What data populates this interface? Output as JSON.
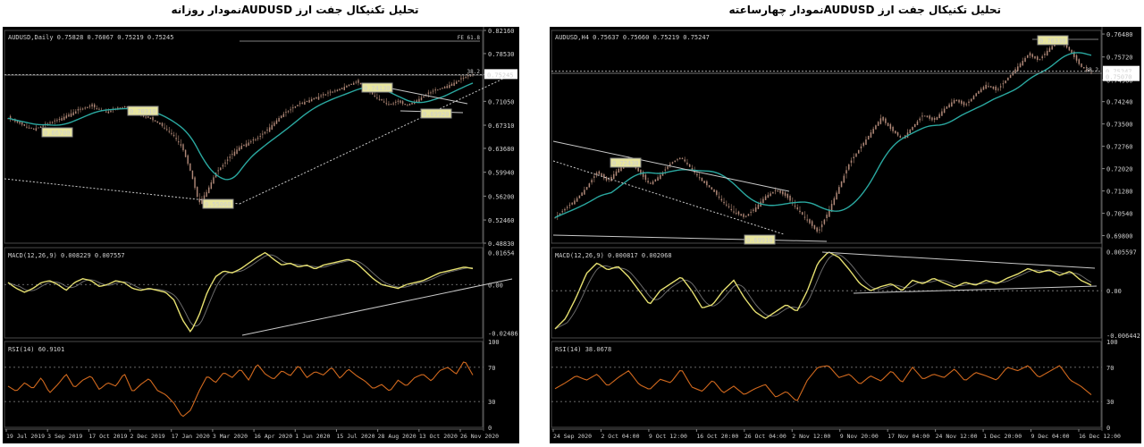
{
  "headers": {
    "left": "تحلیل تکنیکال جفت ارز AUDUSDنمودار روزانه",
    "right": "تحلیل تکنیکال جفت ارز AUDUSDنمودار چهارساعته"
  },
  "chart_data": [
    {
      "type": "line",
      "panel": "daily",
      "title": "AUDUSD,Daily  0.75828 0.76067 0.75219 0.75245",
      "price_pane": {
        "yticks": [
          "0.82160",
          "0.78530",
          "0.75245",
          "0.71050",
          "0.67310",
          "0.63680",
          "0.59940",
          "0.56200",
          "0.52460",
          "0.48830"
        ],
        "ylim": [
          0.4883,
          0.8216
        ],
        "last_price": "0.75245",
        "fib_label": "FE 61.8",
        "level_label": "38.2",
        "annotations": [
          "0.66700",
          "0.70310",
          "0.55060",
          "0.74130",
          "0.69920"
        ],
        "close_series": [
          0.684,
          0.678,
          0.672,
          0.667,
          0.671,
          0.676,
          0.681,
          0.688,
          0.694,
          0.699,
          0.703,
          0.698,
          0.694,
          0.699,
          0.702,
          0.697,
          0.69,
          0.684,
          0.677,
          0.668,
          0.656,
          0.638,
          0.6,
          0.551,
          0.57,
          0.598,
          0.612,
          0.628,
          0.64,
          0.646,
          0.652,
          0.663,
          0.676,
          0.689,
          0.697,
          0.706,
          0.711,
          0.716,
          0.72,
          0.725,
          0.73,
          0.736,
          0.741,
          0.733,
          0.72,
          0.712,
          0.705,
          0.71,
          0.704,
          0.71,
          0.718,
          0.725,
          0.73,
          0.735,
          0.741,
          0.748,
          0.752
        ]
      },
      "macd": {
        "label": "MACD(12,26,9) 0.008229 0.007557",
        "yticks": [
          "0.01654",
          "0.00",
          "-0.02486"
        ],
        "ylim": [
          -0.0275,
          0.019
        ],
        "values": [
          0.001,
          -0.002,
          -0.004,
          -0.002,
          0.001,
          0.002,
          0.0,
          -0.003,
          0.001,
          0.003,
          0.002,
          -0.001,
          0.0,
          0.002,
          0.001,
          -0.002,
          -0.003,
          -0.002,
          -0.003,
          -0.004,
          -0.008,
          -0.018,
          -0.0245,
          -0.016,
          -0.004,
          0.004,
          0.007,
          0.006,
          0.008,
          0.011,
          0.014,
          0.0165,
          0.013,
          0.01,
          0.011,
          0.009,
          0.01,
          0.008,
          0.01,
          0.011,
          0.012,
          0.013,
          0.011,
          0.007,
          0.003,
          0.0,
          -0.001,
          -0.002,
          0.0,
          0.001,
          0.002,
          0.004,
          0.006,
          0.007,
          0.008,
          0.009,
          0.0082
        ]
      },
      "rsi": {
        "label": "RSI(14) 60.9101",
        "yticks": [
          "100",
          "70",
          "30",
          "0"
        ],
        "ylim": [
          0,
          100
        ],
        "values": [
          48,
          42,
          52,
          45,
          58,
          40,
          50,
          62,
          46,
          55,
          60,
          44,
          52,
          48,
          63,
          41,
          50,
          57,
          43,
          38,
          28,
          12,
          20,
          42,
          60,
          52,
          64,
          58,
          68,
          55,
          74,
          62,
          56,
          66,
          60,
          72,
          58,
          65,
          61,
          70,
          57,
          68,
          60,
          54,
          45,
          50,
          42,
          55,
          48,
          58,
          62,
          54,
          66,
          70,
          62,
          78,
          60.9
        ]
      },
      "x_ticks": [
        "19 Jul 2019",
        "3 Sep 2019",
        "17 Oct 2019",
        "2 Dec 2019",
        "17 Jan 2020",
        "3 Mar 2020",
        "16 Apr 2020",
        "1 Jun 2020",
        "15 Jul 2020",
        "28 Aug 2020",
        "13 Oct 2020",
        "26 Nov 2020"
      ]
    },
    {
      "type": "line",
      "panel": "h4",
      "title": "AUDUSD,H4  0.75637 0.75660 0.75219 0.75247",
      "price_pane": {
        "yticks": [
          "0.76480",
          "0.75720",
          "0.74960",
          "0.74240",
          "0.73500",
          "0.72760",
          "0.72020",
          "0.71280",
          "0.70540",
          "0.69800"
        ],
        "ylim": [
          0.6955,
          0.766
        ],
        "last_price": "0.75247",
        "prev_price": "0.75070",
        "level_label": "38.2",
        "annotations": [
          "0.72430",
          "0.69910",
          "0.76330"
        ],
        "close_series": [
          0.704,
          0.707,
          0.71,
          0.714,
          0.719,
          0.716,
          0.72,
          0.723,
          0.719,
          0.715,
          0.718,
          0.722,
          0.724,
          0.72,
          0.716,
          0.713,
          0.709,
          0.706,
          0.704,
          0.707,
          0.711,
          0.713,
          0.711,
          0.707,
          0.703,
          0.699,
          0.706,
          0.714,
          0.722,
          0.727,
          0.732,
          0.737,
          0.733,
          0.73,
          0.734,
          0.738,
          0.736,
          0.74,
          0.743,
          0.741,
          0.745,
          0.748,
          0.746,
          0.75,
          0.754,
          0.758,
          0.756,
          0.76,
          0.763,
          0.759,
          0.754,
          0.752
        ]
      },
      "macd": {
        "label": "MACD(12,26,9) 0.000817 0.002068",
        "yticks": [
          "0.005597",
          "0.00",
          "-0.006442"
        ],
        "ylim": [
          -0.0068,
          0.0062
        ],
        "values": [
          -0.0055,
          -0.004,
          -0.001,
          0.0025,
          0.004,
          0.003,
          0.0035,
          0.002,
          0.0,
          -0.002,
          0.0,
          0.001,
          0.002,
          0.0,
          -0.0025,
          -0.002,
          0.0,
          0.0015,
          -0.001,
          -0.003,
          -0.004,
          -0.003,
          -0.002,
          -0.003,
          0.0,
          0.004,
          0.0056,
          0.0048,
          0.003,
          0.001,
          0.0,
          0.0006,
          0.001,
          0.0,
          0.0015,
          0.001,
          0.0018,
          0.0011,
          0.0005,
          0.0012,
          0.0008,
          0.0015,
          0.001,
          0.0018,
          0.0024,
          0.0032,
          0.0026,
          0.003,
          0.0022,
          0.0028,
          0.0015,
          0.0008
        ]
      },
      "rsi": {
        "label": "RSI(14) 38.0678",
        "yticks": [
          "100",
          "70",
          "30",
          "0"
        ],
        "ylim": [
          0,
          100
        ],
        "values": [
          45,
          52,
          60,
          55,
          62,
          48,
          58,
          66,
          50,
          44,
          56,
          52,
          68,
          47,
          42,
          55,
          40,
          48,
          38,
          45,
          50,
          35,
          42,
          30,
          55,
          70,
          72,
          58,
          62,
          50,
          60,
          54,
          66,
          52,
          70,
          56,
          62,
          58,
          68,
          54,
          64,
          60,
          55,
          70,
          66,
          72,
          58,
          65,
          72,
          55,
          48,
          38
        ]
      },
      "x_ticks": [
        "24 Sep 2020",
        "2 Oct 04:00",
        "9 Oct 12:00",
        "16 Oct 20:00",
        "26 Oct 04:00",
        "2 Nov 12:00",
        "9 Nov 20:00",
        "17 Nov 04:00",
        "24 Nov 12:00",
        "1 Dec 20:00",
        "9 Dec 04:00",
        "16 Dec 12:00"
      ]
    }
  ]
}
